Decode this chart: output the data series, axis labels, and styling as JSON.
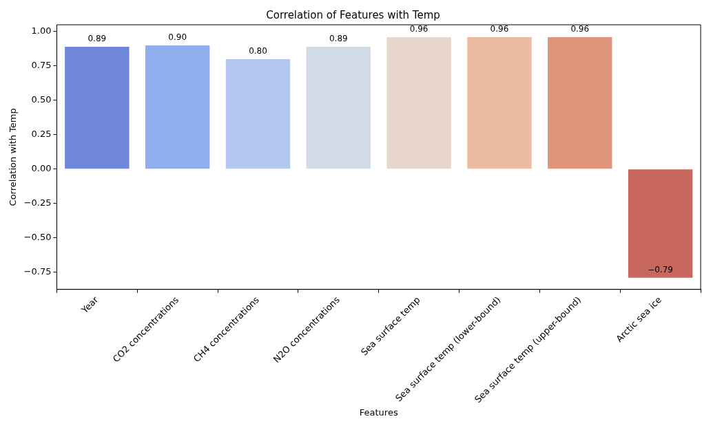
{
  "chart_data": {
    "type": "bar",
    "title": "Correlation of Features with Temp",
    "xlabel": "Features",
    "ylabel": "Correlation with Temp",
    "categories": [
      "Year",
      "CO2 concentrations",
      "CH4 concentrations",
      "N2O concentrations",
      "Sea surface temp",
      "Sea surface temp (lower-bound)",
      "Sea surface temp (upper-bound)",
      "Arctic sea ice"
    ],
    "values": [
      0.89,
      0.9,
      0.8,
      0.89,
      0.96,
      0.96,
      0.96,
      -0.79
    ],
    "colors": [
      "#6f87d8",
      "#91aeee",
      "#b5c8f2",
      "#d2dbe8",
      "#e8d6cd",
      "#ecbba2",
      "#e0957d",
      "#c8675b"
    ],
    "ylim": [
      -0.875,
      1.05
    ],
    "yticks": [
      {
        "value": -0.75,
        "label": "−0.75"
      },
      {
        "value": -0.5,
        "label": "−0.50"
      },
      {
        "value": -0.25,
        "label": "−0.25"
      },
      {
        "value": 0,
        "label": "0.00"
      },
      {
        "value": 0.25,
        "label": "0.25"
      },
      {
        "value": 0.5,
        "label": "0.50"
      },
      {
        "value": 0.75,
        "label": "0.75"
      },
      {
        "value": 1,
        "label": "1.00"
      }
    ],
    "value_labels": [
      "0.89",
      "0.90",
      "0.80",
      "0.89",
      "0.96",
      "0.96",
      "0.96",
      "−0.79"
    ],
    "grid": false,
    "legend": false
  }
}
